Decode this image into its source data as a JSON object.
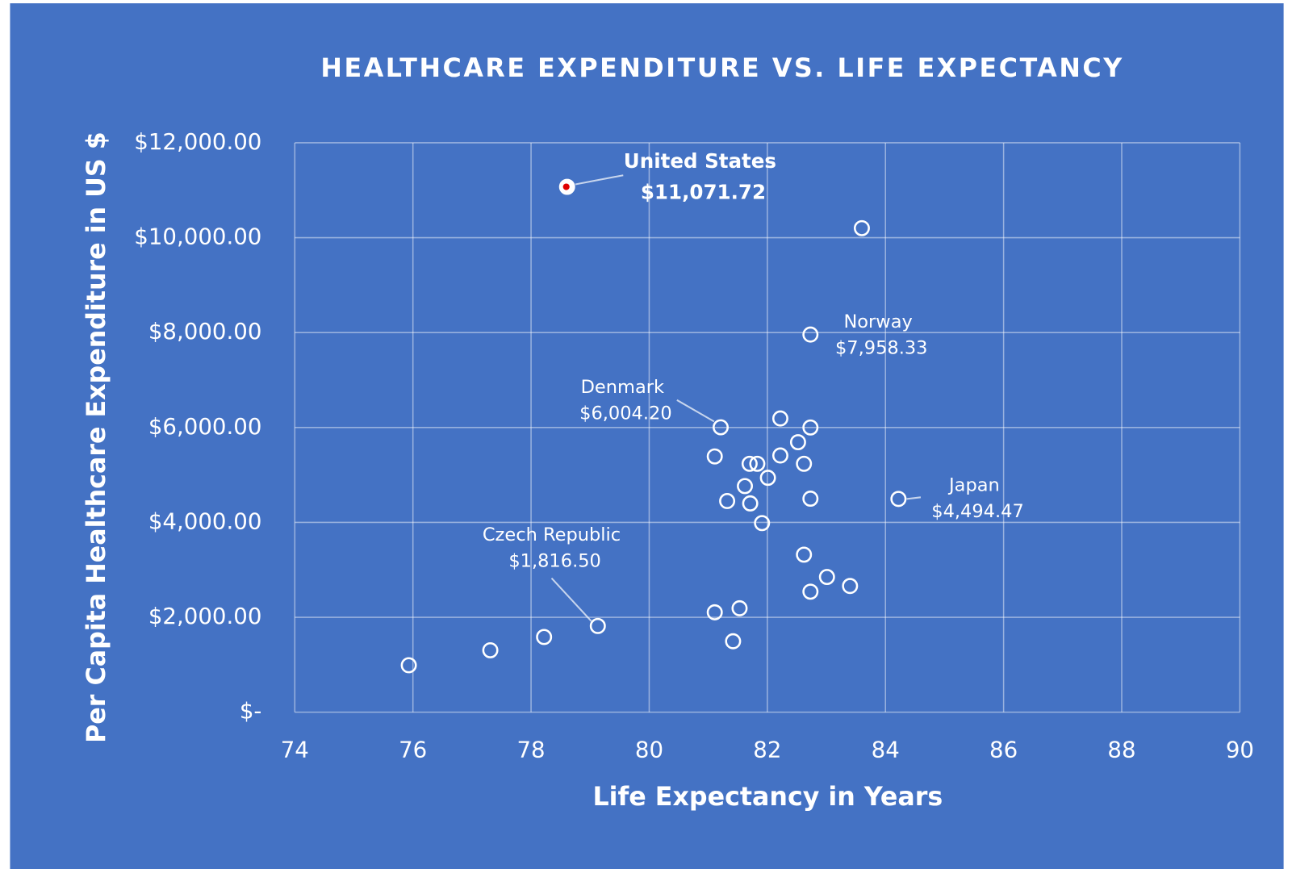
{
  "chart_data": {
    "type": "scatter",
    "title": "HEALTHCARE EXPENDITURE VS. LIFE EXPECTANCY",
    "x_label": "Life Expectancy in Years",
    "y_label": "Per Capita Healthcare Expenditure in US $",
    "background": "#4472c4",
    "grid": true,
    "xlim": [
      74,
      90
    ],
    "xticks": [
      74,
      76,
      78,
      80,
      82,
      84,
      86,
      88,
      90
    ],
    "ylim": [
      0,
      12000
    ],
    "yticks": [
      {
        "value": 0,
        "label": "$-"
      },
      {
        "value": 2000,
        "label": "$2,000.00"
      },
      {
        "value": 4000,
        "label": "$4,000.00"
      },
      {
        "value": 6000,
        "label": "$6,000.00"
      },
      {
        "value": 8000,
        "label": "$8,000.00"
      },
      {
        "value": 10000,
        "label": "$10,000.00"
      },
      {
        "value": 12000,
        "label": "$12,000.00"
      }
    ],
    "series": [
      {
        "color": "#ffffff",
        "fill": "#e00000",
        "x": [
          78.61
        ],
        "values": [
          11071.72
        ],
        "labels": [
          "United States"
        ],
        "value_labels": [
          "$11,071.72"
        ]
      },
      {
        "color": "#ffffff",
        "x": [
          83.6,
          82.73,
          81.21,
          82.22,
          82.73,
          81.11,
          82.52,
          81.7,
          81.83,
          82.22,
          82.62,
          81.62,
          82.01,
          81.32,
          81.71,
          82.73,
          84.22,
          81.91,
          82.62,
          83.01,
          83.4,
          82.73,
          81.11,
          81.53,
          81.42,
          79.13,
          78.22,
          77.31,
          75.93
        ],
        "values": [
          10200,
          7958.33,
          6004.2,
          6190,
          6000,
          5390,
          5690,
          5235,
          5235,
          5410,
          5235,
          4765,
          4940,
          4450,
          4400,
          4500,
          4494.47,
          3985,
          3320,
          2850,
          2660,
          2540,
          2105,
          2190,
          1495,
          1816.5,
          1585,
          1305,
          990
        ],
        "labels": [
          null,
          "Norway",
          "Denmark",
          null,
          null,
          null,
          null,
          null,
          null,
          null,
          null,
          null,
          null,
          null,
          null,
          null,
          "Japan",
          null,
          null,
          null,
          null,
          null,
          null,
          null,
          null,
          "Czech Republic",
          null,
          null,
          null
        ],
        "value_labels": [
          null,
          "$7,958.33",
          "$6,004.20",
          null,
          null,
          null,
          null,
          null,
          null,
          null,
          null,
          null,
          null,
          null,
          null,
          null,
          "$4,494.47",
          null,
          null,
          null,
          null,
          null,
          null,
          null,
          null,
          "$1,816.50",
          null,
          null,
          null
        ]
      }
    ]
  }
}
